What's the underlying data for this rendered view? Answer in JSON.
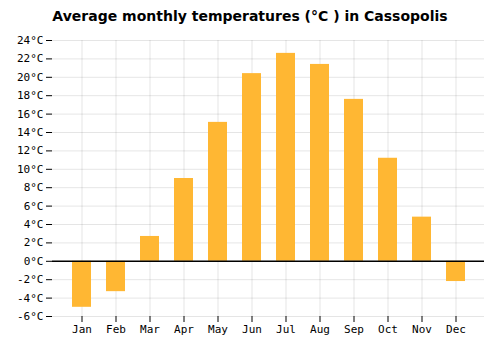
{
  "chart_data": {
    "type": "bar",
    "title": "Average monthly temperatures (°C ) in Cassopolis",
    "categories": [
      "Jan",
      "Feb",
      "Mar",
      "Apr",
      "May",
      "Jun",
      "Jul",
      "Aug",
      "Sep",
      "Oct",
      "Nov",
      "Dec"
    ],
    "values": [
      -5.0,
      -3.3,
      2.7,
      9.0,
      15.1,
      20.4,
      22.6,
      21.4,
      17.6,
      11.2,
      4.8,
      -2.2
    ],
    "color": "#FFB733",
    "ylim": [
      -6,
      24
    ],
    "yticks": [
      {
        "value": -6,
        "label": "-6°C"
      },
      {
        "value": -4,
        "label": "-4°C"
      },
      {
        "value": -2,
        "label": "-2°C"
      },
      {
        "value": 0,
        "label": "0°C"
      },
      {
        "value": 2,
        "label": "2°C"
      },
      {
        "value": 4,
        "label": "4°C"
      },
      {
        "value": 6,
        "label": "6°C"
      },
      {
        "value": 8,
        "label": "8°C"
      },
      {
        "value": 10,
        "label": "10°C"
      },
      {
        "value": 12,
        "label": "12°C"
      },
      {
        "value": 14,
        "label": "14°C"
      },
      {
        "value": 16,
        "label": "16°C"
      },
      {
        "value": 18,
        "label": "18°C"
      },
      {
        "value": 20,
        "label": "20°C"
      },
      {
        "value": 22,
        "label": "22°C"
      },
      {
        "value": 24,
        "label": "24°C"
      }
    ],
    "grid": true
  }
}
